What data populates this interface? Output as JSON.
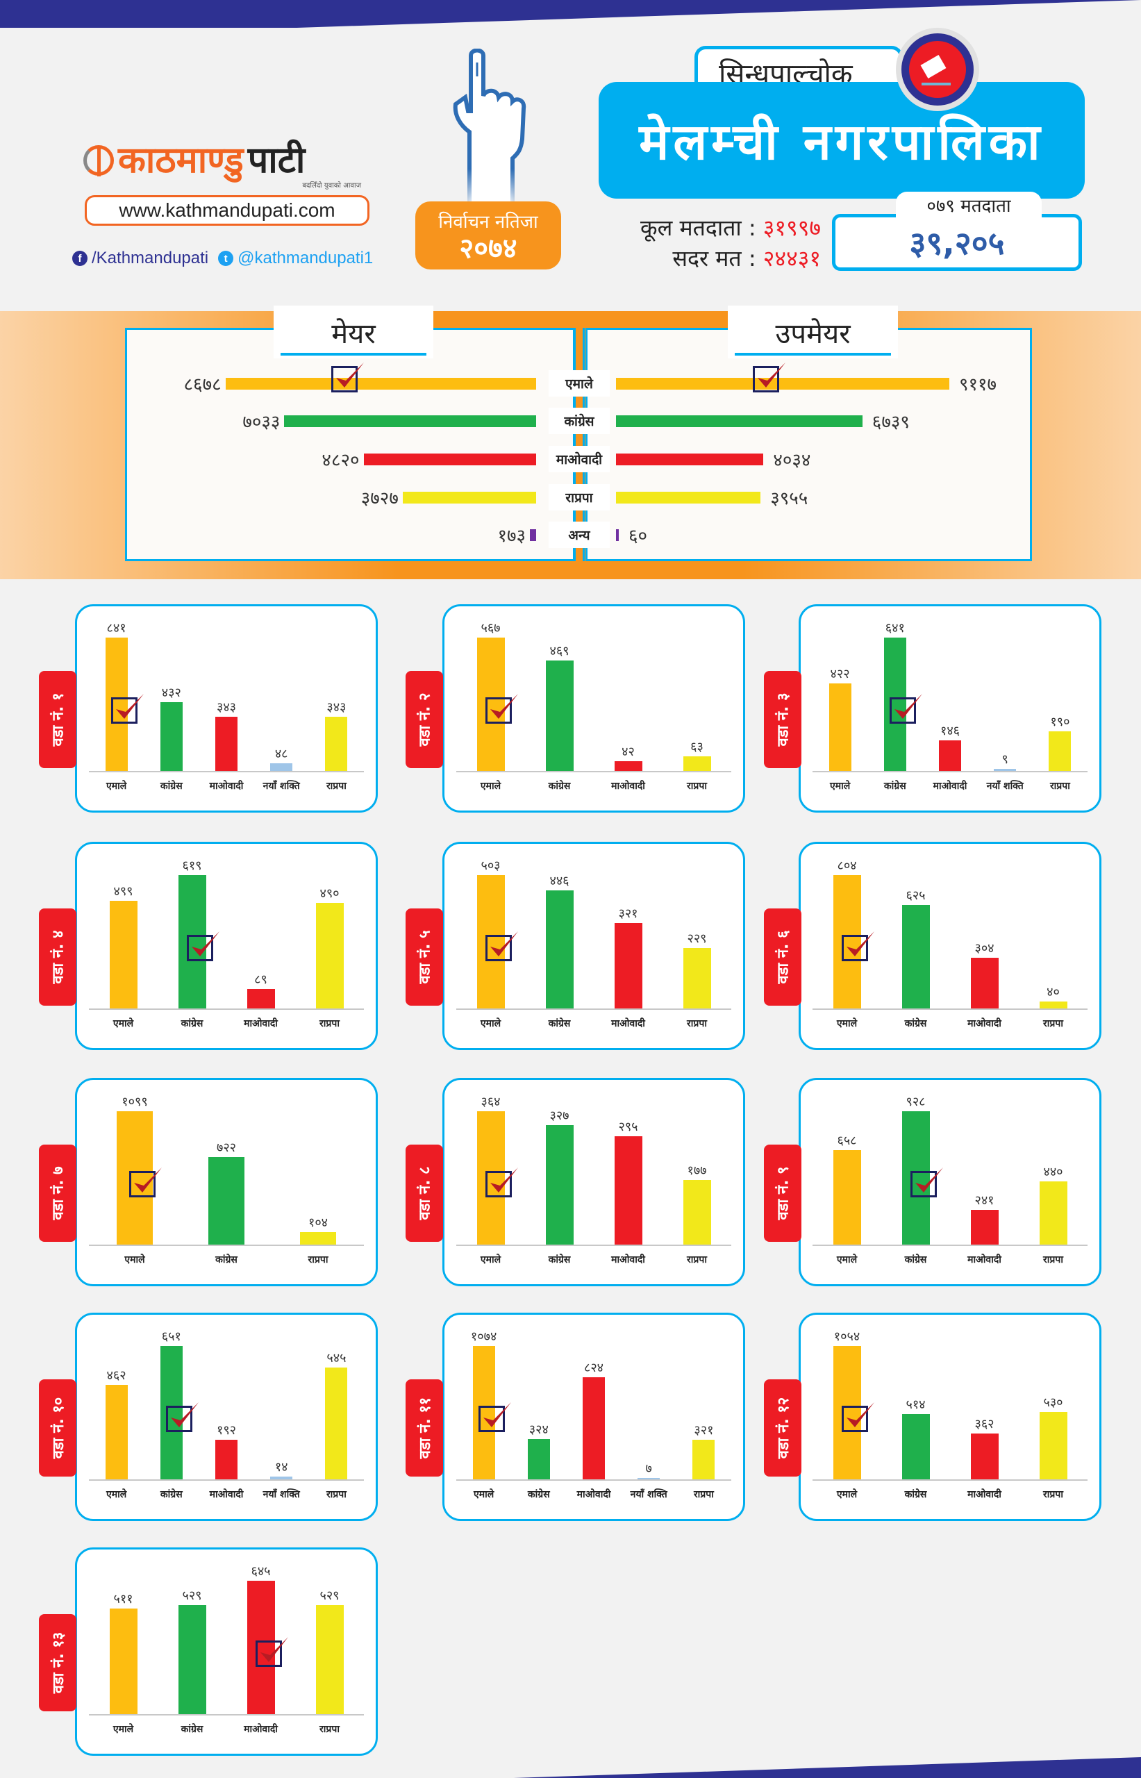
{
  "header": {
    "logo_text_a": "काठमाण्डु",
    "logo_text_b": "पाटी",
    "logo_tagline": "बदलिँदो युवाको आवाज",
    "website": "www.kathmandupati.com",
    "facebook": "/Kathmandupati",
    "twitter": "@kathmandupati1",
    "result_badge_line1": "निर्वाचन नतिजा",
    "result_badge_line2": "२०७४",
    "district": "सिन्धुपाल्चोक",
    "municipality": "मेलम्ची नगरपालिका",
    "total_voters_label": "कूल मतदाता :",
    "total_voters_value": "३१९९७",
    "valid_votes_label": "सदर मत :",
    "valid_votes_value": "२४४३१",
    "voters_079_label": "०७९ मतदाता",
    "voters_079_value": "३९,२०५"
  },
  "colors": {
    "एमाले": "#fdbd10",
    "कांग्रेस": "#1fb04c",
    "माओवादी": "#ed1c24",
    "राप्रपा": "#f2e81a",
    "नयाँ शक्ति": "#9fc5e8",
    "अन्य": "#7030a0",
    "accent_blue": "#00aeef",
    "accent_orange": "#f7941d",
    "navy": "#2e3192"
  },
  "chart_data": [
    {
      "type": "bar",
      "orientation": "horizontal",
      "title": "मेयर",
      "categories": [
        "एमाले",
        "कांग्रेस",
        "माओवादी",
        "राप्रपा",
        "अन्य"
      ],
      "values": [
        8678,
        7033,
        4820,
        3727,
        173
      ],
      "labels": [
        "८६७८",
        "७०३३",
        "४८२०",
        "३७२७",
        "१७३"
      ],
      "winner": "एमाले"
    },
    {
      "type": "bar",
      "orientation": "horizontal",
      "title": "उपमेयर",
      "categories": [
        "एमाले",
        "कांग्रेस",
        "माओवादी",
        "राप्रपा",
        "अन्य"
      ],
      "values": [
        9117,
        6739,
        4034,
        3955,
        60
      ],
      "labels": [
        "९११७",
        "६७३९",
        "४०३४",
        "३९५५",
        "६०"
      ],
      "winner": "एमाले"
    },
    {
      "type": "bar",
      "title": "वडा नं. १",
      "categories": [
        "एमाले",
        "कांग्रेस",
        "माओवादी",
        "नयाँ शक्ति",
        "राप्रपा"
      ],
      "values": [
        841,
        432,
        343,
        48,
        343
      ],
      "labels": [
        "८४१",
        "४३२",
        "३४३",
        "४८",
        "३४३"
      ],
      "winner": "एमाले"
    },
    {
      "type": "bar",
      "title": "वडा नं. २",
      "categories": [
        "एमाले",
        "कांग्रेस",
        "माओवादी",
        "राप्रपा"
      ],
      "values": [
        567,
        469,
        42,
        63
      ],
      "labels": [
        "५६७",
        "४६९",
        "४२",
        "६३"
      ],
      "winner": "एमाले"
    },
    {
      "type": "bar",
      "title": "वडा नं. ३",
      "categories": [
        "एमाले",
        "कांग्रेस",
        "माओवादी",
        "नयाँ शक्ति",
        "राप्रपा"
      ],
      "values": [
        422,
        641,
        146,
        9,
        190
      ],
      "labels": [
        "४२२",
        "६४१",
        "१४६",
        "९",
        "१९०"
      ],
      "winner": "कांग्रेस"
    },
    {
      "type": "bar",
      "title": "वडा नं. ४",
      "categories": [
        "एमाले",
        "कांग्रेस",
        "माओवादी",
        "राप्रपा"
      ],
      "values": [
        499,
        619,
        89,
        490
      ],
      "labels": [
        "४९९",
        "६१९",
        "८९",
        "४९०"
      ],
      "winner": "कांग्रेस"
    },
    {
      "type": "bar",
      "title": "वडा नं. ५",
      "categories": [
        "एमाले",
        "कांग्रेस",
        "माओवादी",
        "राप्रपा"
      ],
      "values": [
        503,
        446,
        321,
        229
      ],
      "labels": [
        "५०३",
        "४४६",
        "३२१",
        "२२९"
      ],
      "winner": "एमाले"
    },
    {
      "type": "bar",
      "title": "वडा नं. ६",
      "categories": [
        "एमाले",
        "कांग्रेस",
        "माओवादी",
        "राप्रपा"
      ],
      "values": [
        804,
        625,
        304,
        40
      ],
      "labels": [
        "८०४",
        "६२५",
        "३०४",
        "४०"
      ],
      "winner": "एमाले"
    },
    {
      "type": "bar",
      "title": "वडा नं. ७",
      "categories": [
        "एमाले",
        "कांग्रेस",
        "राप्रपा"
      ],
      "values": [
        1099,
        722,
        104
      ],
      "labels": [
        "१०९९",
        "७२२",
        "१०४"
      ],
      "winner": "एमाले"
    },
    {
      "type": "bar",
      "title": "वडा नं. ८",
      "categories": [
        "एमाले",
        "कांग्रेस",
        "माओवादी",
        "राप्रपा"
      ],
      "values": [
        364,
        327,
        295,
        177
      ],
      "labels": [
        "३६४",
        "३२७",
        "२९५",
        "१७७"
      ],
      "winner": "एमाले"
    },
    {
      "type": "bar",
      "title": "वडा नं. ९",
      "categories": [
        "एमाले",
        "कांग्रेस",
        "माओवादी",
        "राप्रपा"
      ],
      "values": [
        658,
        928,
        241,
        440
      ],
      "labels": [
        "६५८",
        "९२८",
        "२४१",
        "४४०"
      ],
      "winner": "कांग्रेस"
    },
    {
      "type": "bar",
      "title": "वडा नं. १०",
      "categories": [
        "एमाले",
        "कांग्रेस",
        "माओवादी",
        "नयाँ शक्ति",
        "राप्रपा"
      ],
      "values": [
        462,
        651,
        192,
        14,
        545
      ],
      "labels": [
        "४६२",
        "६५१",
        "१९२",
        "१४",
        "५४५"
      ],
      "winner": "कांग्रेस"
    },
    {
      "type": "bar",
      "title": "वडा नं. ११",
      "categories": [
        "एमाले",
        "कांग्रेस",
        "माओवादी",
        "नयाँ शक्ति",
        "राप्रपा"
      ],
      "values": [
        1074,
        324,
        824,
        7,
        321
      ],
      "labels": [
        "१०७४",
        "३२४",
        "८२४",
        "७",
        "३२१"
      ],
      "winner": "एमाले"
    },
    {
      "type": "bar",
      "title": "वडा नं. १२",
      "categories": [
        "एमाले",
        "कांग्रेस",
        "माओवादी",
        "राप्रपा"
      ],
      "values": [
        1054,
        514,
        362,
        530
      ],
      "labels": [
        "१०५४",
        "५१४",
        "३६२",
        "५३०"
      ],
      "winner": "एमाले"
    },
    {
      "type": "bar",
      "title": "वडा नं. १३",
      "categories": [
        "एमाले",
        "कांग्रेस",
        "माओवादी",
        "राप्रपा"
      ],
      "values": [
        511,
        529,
        645,
        529
      ],
      "labels": [
        "५११",
        "५२९",
        "६४५",
        "५२९"
      ],
      "winner": "माओवादी"
    }
  ]
}
